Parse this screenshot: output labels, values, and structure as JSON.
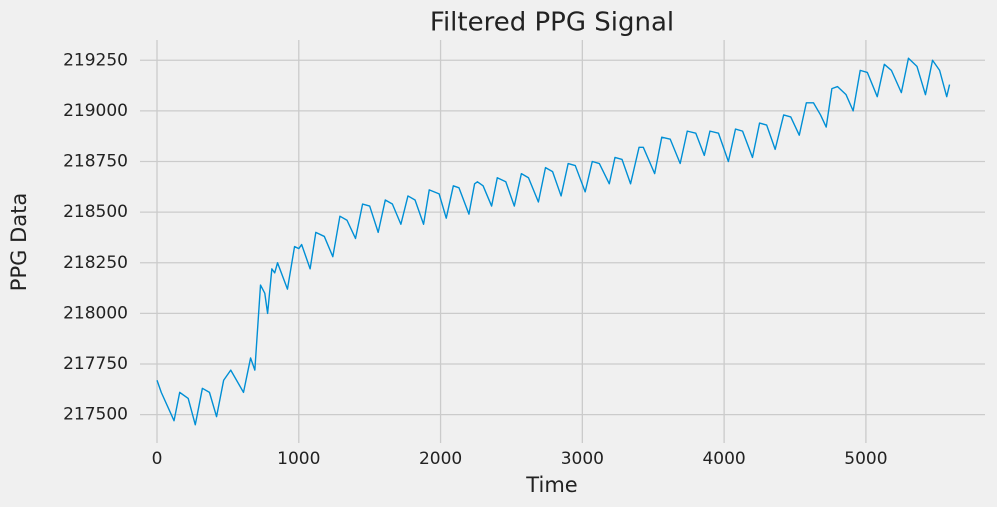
{
  "chart_data": {
    "type": "line",
    "title": "Filtered PPG Signal",
    "x_label": "Time",
    "y_label": "PPG Data",
    "x": [
      0,
      30,
      120,
      160,
      220,
      270,
      320,
      370,
      420,
      470,
      520,
      610,
      660,
      690,
      730,
      760,
      780,
      810,
      830,
      850,
      920,
      970,
      1000,
      1020,
      1080,
      1120,
      1180,
      1240,
      1290,
      1340,
      1400,
      1450,
      1500,
      1560,
      1610,
      1660,
      1720,
      1770,
      1820,
      1880,
      1920,
      1990,
      2040,
      2090,
      2130,
      2200,
      2240,
      2260,
      2300,
      2360,
      2400,
      2460,
      2520,
      2570,
      2620,
      2690,
      2740,
      2790,
      2850,
      2900,
      2950,
      3020,
      3070,
      3120,
      3190,
      3230,
      3280,
      3340,
      3400,
      3430,
      3510,
      3560,
      3620,
      3690,
      3740,
      3800,
      3860,
      3900,
      3960,
      4030,
      4080,
      4130,
      4200,
      4250,
      4300,
      4360,
      4420,
      4470,
      4530,
      4580,
      4630,
      4680,
      4720,
      4760,
      4800,
      4860,
      4910,
      4960,
      5010,
      5080,
      5130,
      5180,
      5250,
      5300,
      5360,
      5420,
      5470,
      5520,
      5570,
      5590
    ],
    "values": [
      217670,
      217610,
      217470,
      217610,
      217580,
      217450,
      217630,
      217610,
      217490,
      217670,
      217720,
      217610,
      217780,
      217720,
      218140,
      218100,
      218000,
      218220,
      218200,
      218250,
      218120,
      218330,
      218320,
      218340,
      218220,
      218400,
      218380,
      218280,
      218480,
      218460,
      218370,
      218540,
      218530,
      218400,
      218560,
      218540,
      218440,
      218580,
      218560,
      218440,
      218610,
      218590,
      218470,
      218630,
      218620,
      218490,
      218640,
      218650,
      218630,
      218530,
      218670,
      218650,
      218530,
      218690,
      218670,
      218550,
      218720,
      218700,
      218580,
      218740,
      218730,
      218600,
      218750,
      218740,
      218640,
      218770,
      218760,
      218640,
      218820,
      218820,
      218690,
      218870,
      218860,
      218740,
      218900,
      218890,
      218780,
      218900,
      218890,
      218750,
      218910,
      218900,
      218770,
      218940,
      218930,
      218810,
      218980,
      218970,
      218880,
      219040,
      219040,
      218980,
      218920,
      219110,
      219120,
      219080,
      219000,
      219200,
      219190,
      219070,
      219230,
      219200,
      219090,
      219260,
      219220,
      219080,
      219250,
      219200,
      219070,
      219130
    ],
    "color": "#008fd5",
    "xlim": [
      -120,
      5840
    ],
    "ylim": [
      217360,
      219350
    ],
    "xticks": [
      0,
      1000,
      2000,
      3000,
      4000,
      5000
    ],
    "yticks": [
      217500,
      217750,
      218000,
      218250,
      218500,
      218750,
      219000,
      219250
    ],
    "grid": true
  }
}
